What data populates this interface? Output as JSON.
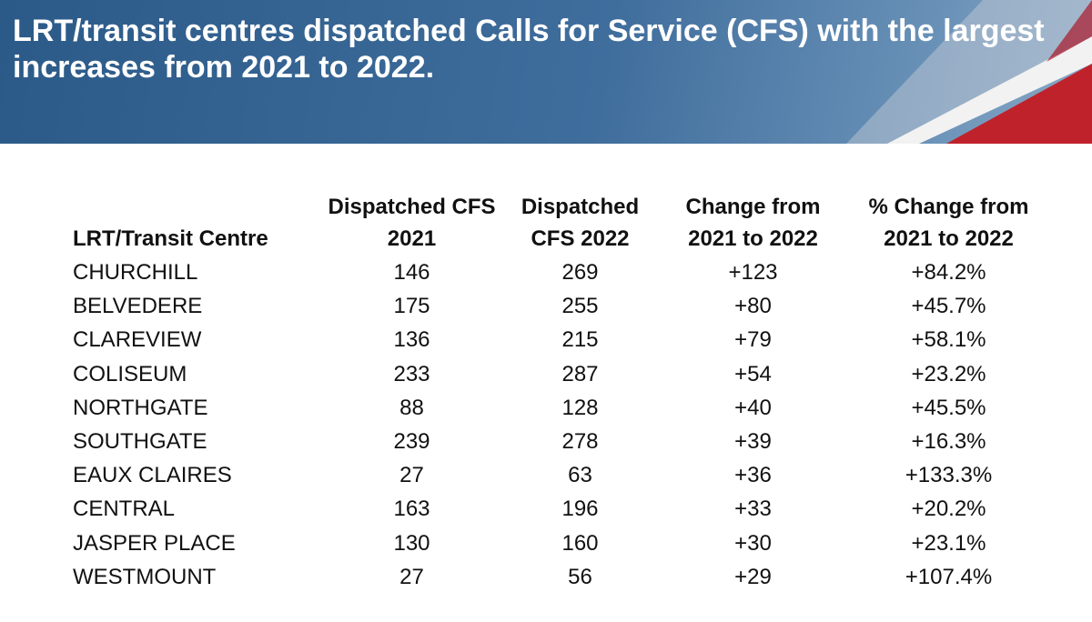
{
  "header": {
    "title": "LRT/transit centres dispatched Calls for Service (CFS) with the largest increases from 2021 to 2022."
  },
  "table": {
    "columns": [
      [
        "LRT/Transit Centre"
      ],
      [
        "Dispatched CFS",
        "2021"
      ],
      [
        "Dispatched",
        "CFS 2022"
      ],
      [
        "Change from",
        "2021 to 2022"
      ],
      [
        "% Change from",
        "2021 to 2022"
      ]
    ],
    "rows": [
      [
        "CHURCHILL",
        "146",
        "269",
        "+123",
        "+84.2%"
      ],
      [
        "BELVEDERE",
        "175",
        "255",
        "+80",
        "+45.7%"
      ],
      [
        "CLAREVIEW",
        "136",
        "215",
        "+79",
        "+58.1%"
      ],
      [
        "COLISEUM",
        "233",
        "287",
        "+54",
        "+23.2%"
      ],
      [
        "NORTHGATE",
        "88",
        "128",
        "+40",
        "+45.5%"
      ],
      [
        "SOUTHGATE",
        "239",
        "278",
        "+39",
        "+16.3%"
      ],
      [
        "EAUX CLAIRES",
        "27",
        "63",
        "+36",
        "+133.3%"
      ],
      [
        "CENTRAL",
        "163",
        "196",
        "+33",
        "+20.2%"
      ],
      [
        "JASPER PLACE",
        "130",
        "160",
        "+30",
        "+23.1%"
      ],
      [
        "WESTMOUNT",
        "27",
        "56",
        "+29",
        "+107.4%"
      ]
    ]
  }
}
